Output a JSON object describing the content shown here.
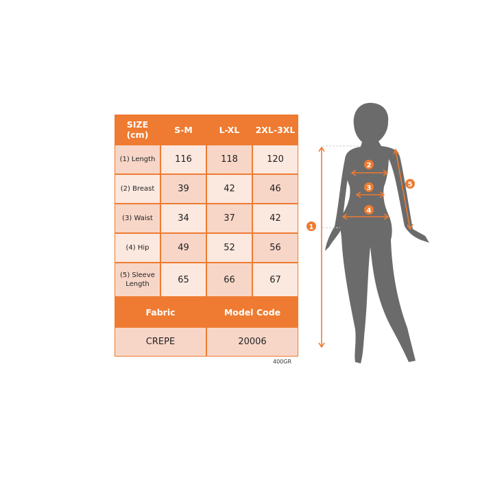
{
  "table": {
    "header": [
      "SIZE\n(cm)",
      "S-M",
      "L-XL",
      "2XL-3XL"
    ],
    "rows": [
      {
        "label": "(1) Length",
        "values": [
          "116",
          "118",
          "120"
        ]
      },
      {
        "label": "(2) Breast",
        "values": [
          "39",
          "42",
          "46"
        ]
      },
      {
        "label": "(3) Waist",
        "values": [
          "34",
          "37",
          "42"
        ]
      },
      {
        "label": "(4) Hip",
        "values": [
          "49",
          "52",
          "56"
        ]
      },
      {
        "label": "(5) Sleeve\nLength",
        "values": [
          "65",
          "66",
          "67"
        ]
      }
    ],
    "footer_header": [
      "Fabric",
      "Model Code"
    ],
    "footer_values": [
      "CREPE",
      "20006"
    ]
  },
  "weight_note": "400GR",
  "figure": {
    "markers": [
      "1",
      "2",
      "3",
      "4",
      "5"
    ]
  },
  "colors": {
    "accent": "#ee7b31",
    "silhouette": "#6b6b6b",
    "cell_dark": "#f7d6c8",
    "cell_light": "#fbe8df"
  }
}
